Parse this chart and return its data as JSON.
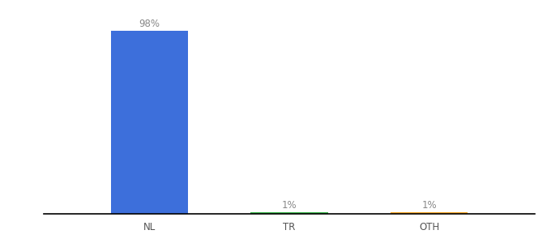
{
  "categories": [
    "NL",
    "TR",
    "OTH"
  ],
  "values": [
    98,
    1,
    1
  ],
  "bar_colors": [
    "#3d6fdb",
    "#3ab54a",
    "#f5a623"
  ],
  "label_color": "#888888",
  "ylim": [
    0,
    108
  ],
  "background_color": "#ffffff",
  "label_fontsize": 8.5,
  "tick_fontsize": 8.5,
  "tick_color": "#555555",
  "bar_width": 0.55,
  "figsize": [
    6.8,
    3.0
  ],
  "dpi": 100
}
